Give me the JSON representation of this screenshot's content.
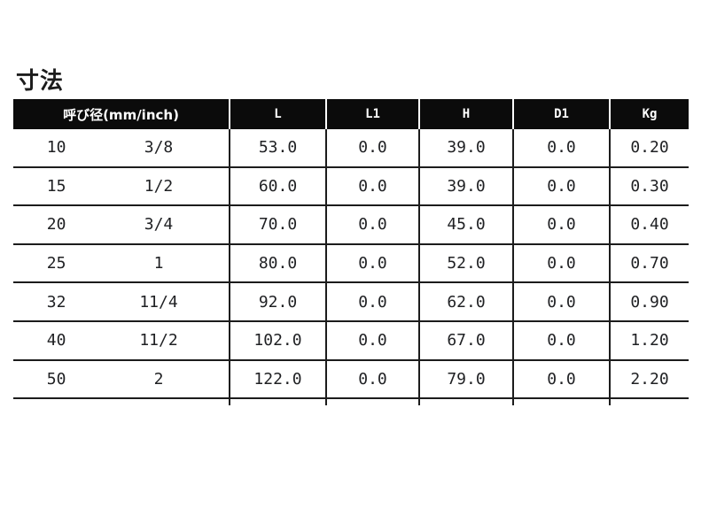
{
  "page": {
    "title": "寸法"
  },
  "table": {
    "header": {
      "diameter": "呼び径(mm/inch)",
      "cols": [
        "L",
        "L1",
        "H",
        "D1",
        "Kg"
      ]
    },
    "rows": [
      {
        "mm": "10",
        "inch": "3/8",
        "l": "53.0",
        "l1": "0.0",
        "h": "39.0",
        "d1": "0.0",
        "kg": "0.20"
      },
      {
        "mm": "15",
        "inch": "1/2",
        "l": "60.0",
        "l1": "0.0",
        "h": "39.0",
        "d1": "0.0",
        "kg": "0.30"
      },
      {
        "mm": "20",
        "inch": "3/4",
        "l": "70.0",
        "l1": "0.0",
        "h": "45.0",
        "d1": "0.0",
        "kg": "0.40"
      },
      {
        "mm": "25",
        "inch": "1",
        "l": "80.0",
        "l1": "0.0",
        "h": "52.0",
        "d1": "0.0",
        "kg": "0.70"
      },
      {
        "mm": "32",
        "inch": "11/4",
        "l": "92.0",
        "l1": "0.0",
        "h": "62.0",
        "d1": "0.0",
        "kg": "0.90"
      },
      {
        "mm": "40",
        "inch": "11/2",
        "l": "102.0",
        "l1": "0.0",
        "h": "67.0",
        "d1": "0.0",
        "kg": "1.20"
      },
      {
        "mm": "50",
        "inch": "2",
        "l": "122.0",
        "l1": "0.0",
        "h": "79.0",
        "d1": "0.0",
        "kg": "2.20"
      }
    ]
  },
  "colors": {
    "background": "#ffffff",
    "header_bg": "#0b0b0b",
    "header_text": "#ffffff",
    "grid_line": "#1c1c1c",
    "text": "#1f2023"
  }
}
